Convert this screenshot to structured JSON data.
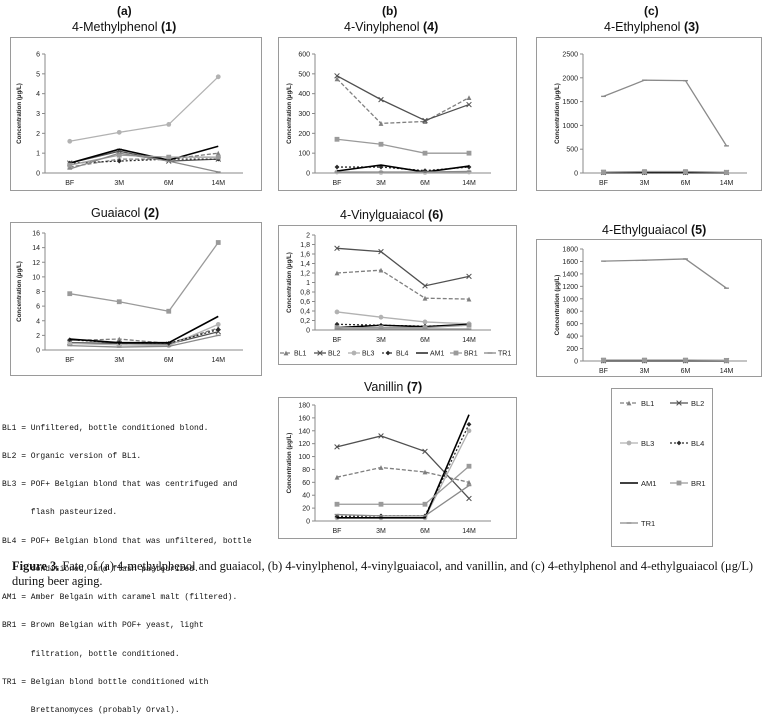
{
  "panel_labels": {
    "a": "(a)",
    "b": "(b)",
    "c": "(c)"
  },
  "colors": {
    "BL1": "#7f7f7f",
    "BL2": "#505050",
    "BL3": "#b2b2b2",
    "BL4": "#2a2a2a",
    "AM1": "#000000",
    "BR1": "#9a9a9a",
    "TR1": "#8a8a8a"
  },
  "series_style": {
    "BL1": {
      "dash": "4,2",
      "marker": "triangle"
    },
    "BL2": {
      "dash": "",
      "marker": "x"
    },
    "BL3": {
      "dash": "",
      "marker": "circle"
    },
    "BL4": {
      "dash": "2,2",
      "marker": "diamond"
    },
    "AM1": {
      "dash": "",
      "marker": "none"
    },
    "BR1": {
      "dash": "",
      "marker": "square"
    },
    "TR1": {
      "dash": "",
      "marker": "dash"
    }
  },
  "chart_data": [
    {
      "id": "methylphenol",
      "type": "line",
      "title": "4-Methylphenol",
      "title_number": "(1)",
      "ylabel": "Concentration (µg/L)",
      "xlabel": "",
      "x": [
        "BF",
        "3M",
        "6M",
        "14M"
      ],
      "ylim": [
        0,
        6
      ],
      "yticks": [
        "0",
        "1",
        "2",
        "3",
        "4",
        "5",
        "6"
      ],
      "ytick_values": [
        0,
        1,
        2,
        3,
        4,
        5,
        6
      ],
      "grid": false,
      "series": [
        {
          "name": "BL1",
          "values": [
            0.3,
            0.7,
            0.7,
            1.0
          ]
        },
        {
          "name": "BL2",
          "values": [
            0.5,
            1.1,
            0.6,
            0.7
          ]
        },
        {
          "name": "BL3",
          "values": [
            1.6,
            2.05,
            2.45,
            4.85
          ]
        },
        {
          "name": "BL4",
          "values": [
            0.5,
            0.6,
            0.7,
            0.7
          ]
        },
        {
          "name": "AM1",
          "values": [
            0.5,
            1.2,
            0.65,
            1.35
          ]
        },
        {
          "name": "BR1",
          "values": [
            0.4,
            0.9,
            0.8,
            0.8
          ]
        },
        {
          "name": "TR1",
          "values": [
            0.2,
            1.0,
            0.6,
            0.05
          ]
        }
      ]
    },
    {
      "id": "vinylphenol",
      "type": "line",
      "title": "4-Vinylphenol",
      "title_number": "(4)",
      "ylabel": "Concentration (µg/L)",
      "xlabel": "",
      "x": [
        "BF",
        "3M",
        "6M",
        "14M"
      ],
      "ylim": [
        0,
        600
      ],
      "yticks": [
        "0",
        "100",
        "200",
        "300",
        "400",
        "500",
        "600"
      ],
      "ytick_values": [
        0,
        100,
        200,
        300,
        400,
        500,
        600
      ],
      "grid": false,
      "series": [
        {
          "name": "BL1",
          "values": [
            475,
            250,
            260,
            380
          ]
        },
        {
          "name": "BL2",
          "values": [
            490,
            370,
            265,
            345
          ]
        },
        {
          "name": "BL3",
          "values": [
            5,
            3,
            3,
            5
          ]
        },
        {
          "name": "BL4",
          "values": [
            30,
            30,
            12,
            30
          ]
        },
        {
          "name": "AM1",
          "values": [
            10,
            40,
            5,
            35
          ]
        },
        {
          "name": "BR1",
          "values": [
            170,
            145,
            100,
            100
          ]
        },
        {
          "name": "TR1",
          "values": [
            5,
            5,
            5,
            8
          ]
        }
      ]
    },
    {
      "id": "ethylphenol",
      "type": "line",
      "title": "4-Ethylphenol",
      "title_number": "(3)",
      "ylabel": "Concentration (µg/L)",
      "xlabel": "",
      "x": [
        "BF",
        "3M",
        "6M",
        "14M"
      ],
      "ylim": [
        0,
        2500
      ],
      "yticks": [
        "0",
        "500",
        "1000",
        "1500",
        "2000",
        "2500"
      ],
      "ytick_values": [
        0,
        500,
        1000,
        1500,
        2000,
        2500
      ],
      "grid": false,
      "series": [
        {
          "name": "BL1",
          "values": [
            10,
            10,
            10,
            10
          ]
        },
        {
          "name": "BL2",
          "values": [
            10,
            10,
            10,
            10
          ]
        },
        {
          "name": "BL3",
          "values": [
            10,
            10,
            10,
            10
          ]
        },
        {
          "name": "BL4",
          "values": [
            10,
            10,
            10,
            10
          ]
        },
        {
          "name": "AM1",
          "values": [
            10,
            10,
            10,
            10
          ]
        },
        {
          "name": "BR1",
          "values": [
            20,
            30,
            30,
            15
          ]
        },
        {
          "name": "TR1",
          "values": [
            1610,
            1950,
            1940,
            570
          ]
        }
      ]
    },
    {
      "id": "guaiacol",
      "type": "line",
      "title": "Guaiacol",
      "title_number": "(2)",
      "ylabel": "Concentration (µg/L)",
      "xlabel": "",
      "x": [
        "BF",
        "3M",
        "6M",
        "14M"
      ],
      "ylim": [
        0,
        16
      ],
      "yticks": [
        "0",
        "2",
        "4",
        "6",
        "8",
        "10",
        "12",
        "14",
        "16"
      ],
      "ytick_values": [
        0,
        2,
        4,
        6,
        8,
        10,
        12,
        14,
        16
      ],
      "grid": false,
      "series": [
        {
          "name": "BL1",
          "values": [
            1.3,
            1.5,
            0.9,
            3.0
          ]
        },
        {
          "name": "BL2",
          "values": [
            1.0,
            0.9,
            0.8,
            2.5
          ]
        },
        {
          "name": "BL3",
          "values": [
            0.9,
            0.7,
            0.6,
            3.5
          ]
        },
        {
          "name": "BL4",
          "values": [
            1.4,
            1.0,
            0.9,
            2.8
          ]
        },
        {
          "name": "AM1",
          "values": [
            1.5,
            1.0,
            1.0,
            4.6
          ]
        },
        {
          "name": "BR1",
          "values": [
            7.7,
            6.6,
            5.3,
            14.7
          ]
        },
        {
          "name": "TR1",
          "values": [
            0.6,
            0.4,
            0.5,
            2.0
          ]
        }
      ]
    },
    {
      "id": "vinylguaiacol",
      "type": "line",
      "title": "4-Vinylguaiacol",
      "title_number": "(6)",
      "ylabel": "Concentration (µg/L)",
      "xlabel": "",
      "x": [
        "BF",
        "3M",
        "6M",
        "14M"
      ],
      "ylim": [
        0,
        2
      ],
      "yticks": [
        "0",
        "0,2",
        "0,4",
        "0,6",
        "0,8",
        "1",
        "1,2",
        "1,4",
        "1,6",
        "1,8",
        "2"
      ],
      "ytick_values": [
        0,
        0.2,
        0.4,
        0.6,
        0.8,
        1,
        1.2,
        1.4,
        1.6,
        1.8,
        2
      ],
      "grid": false,
      "series": [
        {
          "name": "BL1",
          "values": [
            1.2,
            1.26,
            0.67,
            0.65
          ]
        },
        {
          "name": "BL2",
          "values": [
            1.72,
            1.65,
            0.93,
            1.13
          ]
        },
        {
          "name": "BL3",
          "values": [
            0.38,
            0.27,
            0.17,
            0.13
          ]
        },
        {
          "name": "BL4",
          "values": [
            0.12,
            0.1,
            0.08,
            0.1
          ]
        },
        {
          "name": "AM1",
          "values": [
            0.05,
            0.1,
            0.07,
            0.12
          ]
        },
        {
          "name": "BR1",
          "values": [
            0.05,
            0.05,
            0.05,
            0.1
          ]
        },
        {
          "name": "TR1",
          "values": [
            0.02,
            0.02,
            0.02,
            0.02
          ]
        }
      ],
      "legend": [
        "BL1",
        "BL2",
        "BL3",
        "BL4",
        "AM1",
        "BR1",
        "TR1"
      ]
    },
    {
      "id": "ethylguaiacol",
      "type": "line",
      "title": "4-Ethylguaiacol",
      "title_number": "(5)",
      "ylabel": "Concentration (µg/L)",
      "xlabel": "",
      "x": [
        "BF",
        "3M",
        "6M",
        "14M"
      ],
      "ylim": [
        0,
        1800
      ],
      "yticks": [
        "0",
        "200",
        "400",
        "600",
        "800",
        "1000",
        "1200",
        "1400",
        "1600",
        "1800"
      ],
      "ytick_values": [
        0,
        200,
        400,
        600,
        800,
        1000,
        1200,
        1400,
        1600,
        1800
      ],
      "grid": false,
      "series": [
        {
          "name": "BL1",
          "values": [
            5,
            5,
            5,
            5
          ]
        },
        {
          "name": "BL2",
          "values": [
            5,
            5,
            5,
            5
          ]
        },
        {
          "name": "BL3",
          "values": [
            5,
            5,
            5,
            5
          ]
        },
        {
          "name": "BL4",
          "values": [
            5,
            5,
            5,
            5
          ]
        },
        {
          "name": "AM1",
          "values": [
            5,
            5,
            5,
            5
          ]
        },
        {
          "name": "BR1",
          "values": [
            15,
            15,
            15,
            10
          ]
        },
        {
          "name": "TR1",
          "values": [
            1605,
            1620,
            1640,
            1170
          ]
        }
      ]
    },
    {
      "id": "vanillin",
      "type": "line",
      "title": "Vanillin",
      "title_number": "(7)",
      "ylabel": "Concentration (µg/L)",
      "xlabel": "",
      "x": [
        "BF",
        "3M",
        "6M",
        "14M"
      ],
      "ylim": [
        0,
        180
      ],
      "yticks": [
        "0",
        "20",
        "40",
        "60",
        "80",
        "100",
        "120",
        "140",
        "160",
        "180"
      ],
      "ytick_values": [
        0,
        20,
        40,
        60,
        80,
        100,
        120,
        140,
        160,
        180
      ],
      "grid": false,
      "series": [
        {
          "name": "BL1",
          "values": [
            68,
            83,
            76,
            60
          ]
        },
        {
          "name": "BL2",
          "values": [
            115,
            132,
            108,
            35
          ]
        },
        {
          "name": "BL3",
          "values": [
            5,
            5,
            5,
            140
          ]
        },
        {
          "name": "BL4",
          "values": [
            7,
            8,
            8,
            150
          ]
        },
        {
          "name": "AM1",
          "values": [
            5,
            5,
            5,
            165
          ]
        },
        {
          "name": "BR1",
          "values": [
            26,
            26,
            26,
            85
          ]
        },
        {
          "name": "TR1",
          "values": [
            10,
            8,
            8,
            55
          ]
        }
      ]
    }
  ],
  "legend_box": {
    "entries": [
      "BL1",
      "BL2",
      "BL3",
      "BL4",
      "AM1",
      "BR1",
      "TR1"
    ]
  },
  "abbreviations": [
    "BL1 = Unfiltered, bottle conditioned blond.",
    "BL2 = Organic version of BL1.",
    "BL3 = POF+ Belgian blond that was centrifuged and",
    "      flash pasteurized.",
    "BL4 = POF+ Belgian blond that was unfiltered, bottle",
    "      conditioned, and flash pasteurized.",
    "AM1 = Amber Belgain with caramel malt (filtered).",
    "BR1 = Brown Belgian with POF+ yeast, light",
    "      filtration, bottle conditioned.",
    "TR1 = Belgian blond bottle conditioned with",
    "      Brettanomyces (probably Orval)."
  ],
  "caption": {
    "label": "Figure 3.",
    "text": " Fate of (a) 4-methylphenol and guaiacol, (b) 4-vinylphenol, 4-vinylguaiacol, and vanillin, and (c) 4-ethylphenol and 4-ethylguaiacol (μg/L) during beer aging."
  }
}
